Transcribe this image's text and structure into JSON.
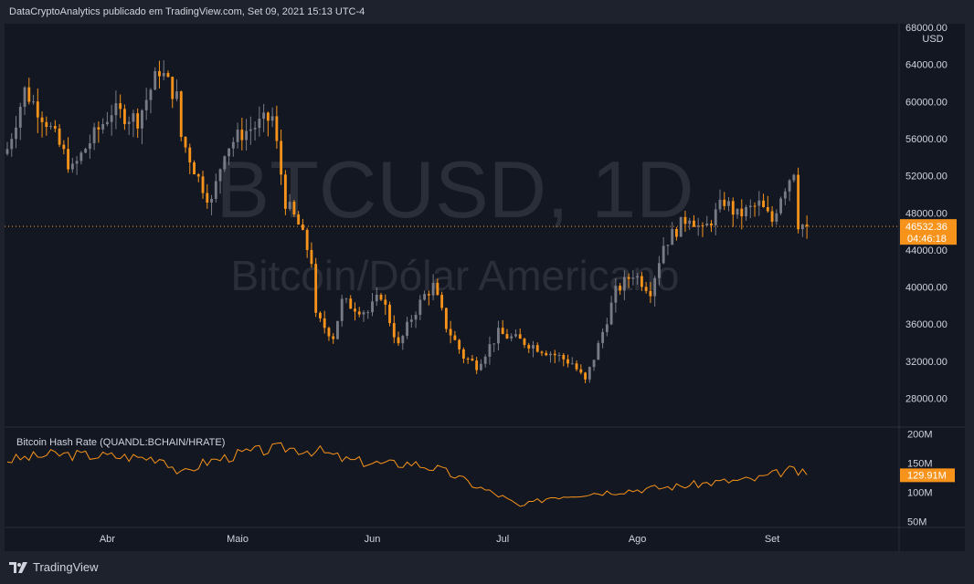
{
  "header": {
    "caption": "DataCryptoAnalytics publicado em TradingView.com, Set 09, 2021 15:13 UTC-4"
  },
  "watermark": {
    "symbol": "BTCUSD, 1D",
    "name": "Bitcoin/Dólar Americano"
  },
  "footer": {
    "brand": "TradingView"
  },
  "colors": {
    "up": "#787b86",
    "down": "#f7931a",
    "hashline": "#f7931a",
    "background": "#131722",
    "frame": "#1e222d",
    "pricebadge": "#f7931a"
  },
  "chart_data": [
    {
      "type": "candlestick",
      "currency_label": "USD",
      "y_ticks": [
        "68000.00",
        "64000.00",
        "60000.00",
        "56000.00",
        "52000.00",
        "48000.00",
        "44000.00",
        "40000.00",
        "36000.00",
        "32000.00",
        "28000.00"
      ],
      "ylim": [
        25000,
        68000
      ],
      "x_ticks": [
        "Abr",
        "Maio",
        "Jun",
        "Jul",
        "Ago",
        "Set"
      ],
      "x_tick_dates": [
        "2021-04-01",
        "2021-05-01",
        "2021-06-01",
        "2021-07-01",
        "2021-08-01",
        "2021-09-01"
      ],
      "x_range": [
        "2021-03-09",
        "2021-09-30"
      ],
      "last_price": 46532.36,
      "last_price_label": "46532.36",
      "countdown_label": "04:46:18",
      "keypoints": [
        [
          "2021-03-09",
          54900
        ],
        [
          "2021-03-13",
          61200
        ],
        [
          "2021-03-18",
          57900
        ],
        [
          "2021-03-24",
          52600
        ],
        [
          "2021-03-27",
          55000
        ],
        [
          "2021-04-02",
          59000
        ],
        [
          "2021-04-08",
          58100
        ],
        [
          "2021-04-13",
          63500
        ],
        [
          "2021-04-17",
          60400
        ],
        [
          "2021-04-18",
          56200
        ],
        [
          "2021-04-22",
          51700
        ],
        [
          "2021-04-25",
          49100
        ],
        [
          "2021-04-28",
          54900
        ],
        [
          "2021-05-02",
          56600
        ],
        [
          "2021-05-09",
          58300
        ],
        [
          "2021-05-12",
          49200
        ],
        [
          "2021-05-15",
          46700
        ],
        [
          "2021-05-18",
          42900
        ],
        [
          "2021-05-19",
          36700
        ],
        [
          "2021-05-23",
          34700
        ],
        [
          "2021-05-25",
          38400
        ],
        [
          "2021-05-31",
          37300
        ],
        [
          "2021-06-03",
          39200
        ],
        [
          "2021-06-07",
          33600
        ],
        [
          "2021-06-10",
          36700
        ],
        [
          "2021-06-13",
          39100
        ],
        [
          "2021-06-15",
          40100
        ],
        [
          "2021-06-18",
          35800
        ],
        [
          "2021-06-22",
          32500
        ],
        [
          "2021-06-25",
          31600
        ],
        [
          "2021-06-30",
          35000
        ],
        [
          "2021-07-07",
          33900
        ],
        [
          "2021-07-13",
          32700
        ],
        [
          "2021-07-17",
          31800
        ],
        [
          "2021-07-20",
          29800
        ],
        [
          "2021-07-23",
          33700
        ],
        [
          "2021-07-27",
          39500
        ],
        [
          "2021-07-31",
          41500
        ],
        [
          "2021-08-04",
          39700
        ],
        [
          "2021-08-07",
          44600
        ],
        [
          "2021-08-13",
          47800
        ],
        [
          "2021-08-16",
          45900
        ],
        [
          "2021-08-21",
          49300
        ],
        [
          "2021-08-24",
          47700
        ],
        [
          "2021-08-29",
          48900
        ],
        [
          "2021-09-01",
          47100
        ],
        [
          "2021-09-03",
          50000
        ],
        [
          "2021-09-06",
          52700
        ],
        [
          "2021-09-07",
          46900
        ],
        [
          "2021-09-09",
          46532
        ]
      ]
    },
    {
      "type": "line",
      "title": "Bitcoin Hash Rate (QUANDL:BCHAIN/HRATE)",
      "y_ticks": [
        "200M",
        "150M",
        "100M",
        "50M"
      ],
      "ylim": [
        40,
        210
      ],
      "last_value": 129.91,
      "last_value_label": "129.91M",
      "keypoints": [
        [
          "2021-03-09",
          155
        ],
        [
          "2021-03-20",
          165
        ],
        [
          "2021-04-01",
          162
        ],
        [
          "2021-04-14",
          158
        ],
        [
          "2021-04-18",
          130
        ],
        [
          "2021-04-23",
          150
        ],
        [
          "2021-05-03",
          168
        ],
        [
          "2021-05-12",
          176
        ],
        [
          "2021-05-20",
          170
        ],
        [
          "2021-05-26",
          155
        ],
        [
          "2021-06-04",
          148
        ],
        [
          "2021-06-10",
          150
        ],
        [
          "2021-06-16",
          140
        ],
        [
          "2021-06-20",
          128
        ],
        [
          "2021-06-25",
          110
        ],
        [
          "2021-07-01",
          92
        ],
        [
          "2021-07-05",
          75
        ],
        [
          "2021-07-12",
          92
        ],
        [
          "2021-07-20",
          98
        ],
        [
          "2021-07-29",
          103
        ],
        [
          "2021-08-10",
          110
        ],
        [
          "2021-08-20",
          118
        ],
        [
          "2021-08-28",
          122
        ],
        [
          "2021-09-05",
          138
        ],
        [
          "2021-09-09",
          130
        ]
      ]
    }
  ]
}
